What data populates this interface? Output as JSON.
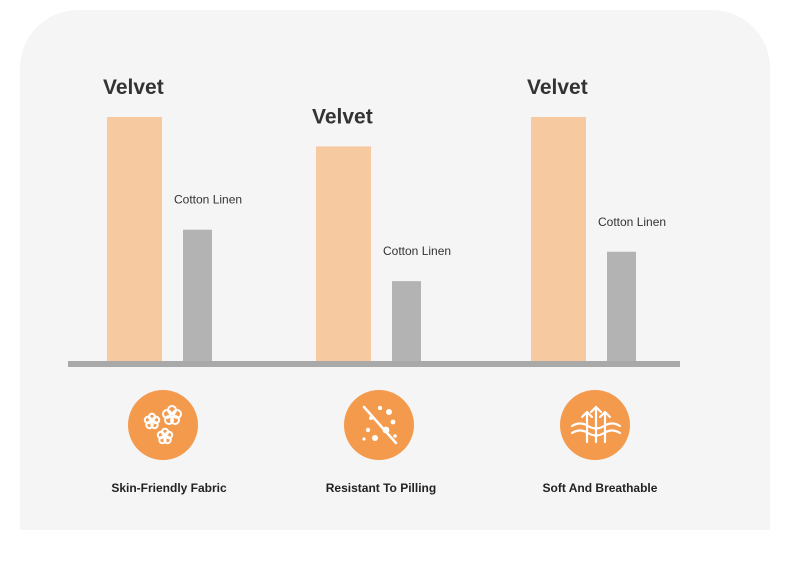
{
  "colors": {
    "velvet": "#f6c9a1",
    "cotton_linen": "#b3b3b3",
    "baseline": "#a9a9a9",
    "icon_bg": "#f39a4c",
    "icon_fg": "#ffffff",
    "panel": "#f5f5f5",
    "text": "#333333"
  },
  "chart_data": {
    "type": "bar",
    "categories": [
      "Skin-Friendly Fabric",
      "Resistant To Pilling",
      "Soft And Breathable"
    ],
    "series": [
      {
        "name": "Velvet",
        "values": [
          100,
          88,
          100
        ]
      },
      {
        "name": "Cotton Linen",
        "values": [
          54,
          33,
          45
        ]
      }
    ],
    "ylim": [
      0,
      100
    ],
    "grid": false,
    "legend": "none"
  },
  "features": [
    {
      "label": "Skin-Friendly Fabric",
      "icon": "flower-icon"
    },
    {
      "label": "Resistant To Pilling",
      "icon": "anti-pilling-icon"
    },
    {
      "label": "Soft And Breathable",
      "icon": "breathable-arrows-icon"
    }
  ]
}
